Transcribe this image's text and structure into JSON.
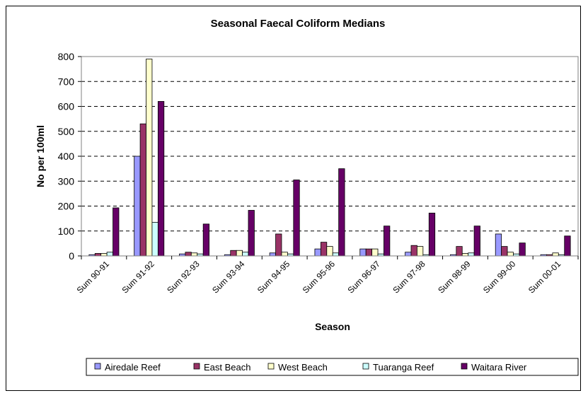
{
  "chart_data": {
    "type": "bar",
    "title": "Seasonal Faecal Coliform Medians",
    "xlabel": "Season",
    "ylabel": "No per 100ml",
    "ylim": [
      0,
      800
    ],
    "yticks": [
      "0",
      "100",
      "200",
      "300",
      "400",
      "500",
      "600",
      "700",
      "800"
    ],
    "grid": true,
    "legend_position": "bottom",
    "categories": [
      "Sum 90-91",
      "Sum 91-92",
      "Sum 92-93",
      "Sum 93-94",
      "Sum 94-95",
      "Sum 95-96",
      "Sum 96-97",
      "Sum 97-98",
      "Sum 98-99",
      "Sum 99-00",
      "Sum 00-01"
    ],
    "series": [
      {
        "name": "Airedale Reef",
        "color": "#9999FF",
        "values": [
          5,
          400,
          8,
          5,
          12,
          28,
          28,
          15,
          5,
          88,
          5
        ]
      },
      {
        "name": "East Beach",
        "color": "#993366",
        "values": [
          10,
          530,
          15,
          22,
          88,
          55,
          28,
          42,
          38,
          38,
          5
        ]
      },
      {
        "name": "West Beach",
        "color": "#FFFFCC",
        "values": [
          10,
          790,
          12,
          22,
          15,
          38,
          28,
          38,
          10,
          15,
          12
        ]
      },
      {
        "name": "Tuaranga Reef",
        "color": "#CCFFFF",
        "values": [
          15,
          135,
          8,
          15,
          8,
          12,
          8,
          5,
          12,
          8,
          5
        ]
      },
      {
        "name": "Waitara River",
        "color": "#660066",
        "values": [
          193,
          620,
          128,
          183,
          305,
          350,
          120,
          172,
          120,
          52,
          80
        ]
      }
    ]
  }
}
